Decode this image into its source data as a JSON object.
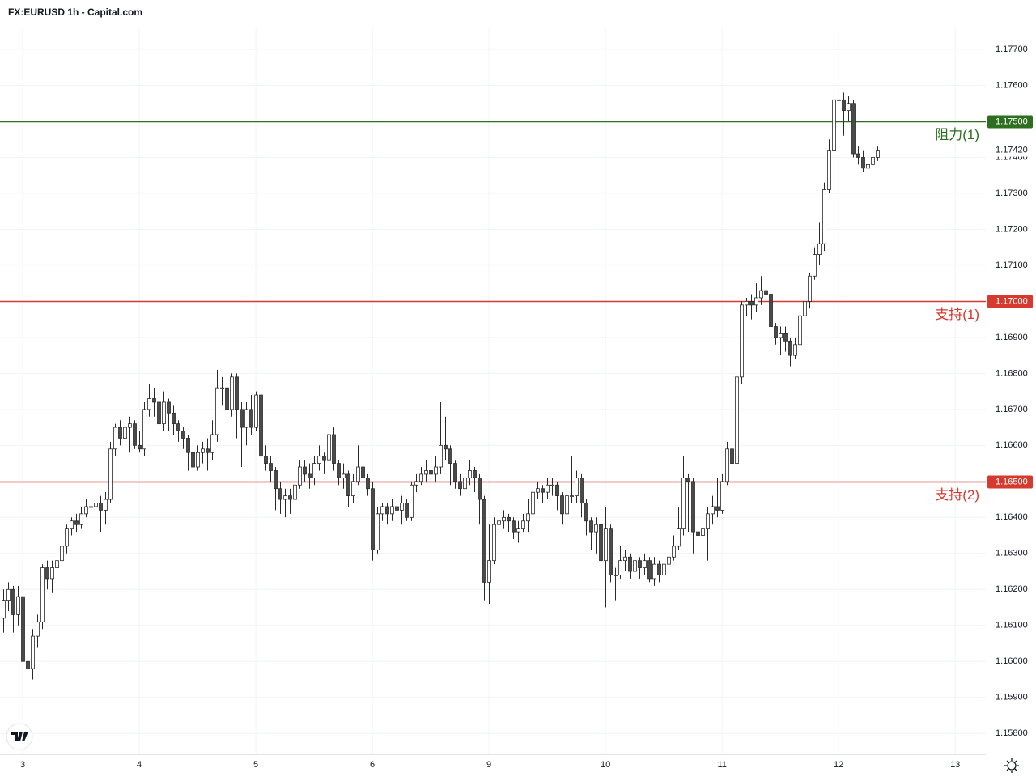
{
  "chart_data": {
    "type": "candlestick",
    "title": "FX:EURUSD 1h - Capital.com",
    "xlim": [
      -0.67,
      202.3
    ],
    "xticks": [
      {
        "value": 4,
        "label": "3"
      },
      {
        "value": 28,
        "label": "4"
      },
      {
        "value": 52,
        "label": "5"
      },
      {
        "value": 76,
        "label": "6"
      },
      {
        "value": 100,
        "label": "9"
      },
      {
        "value": 124,
        "label": "10"
      },
      {
        "value": 148,
        "label": "11"
      },
      {
        "value": 172,
        "label": "12"
      },
      {
        "value": 196,
        "label": "13"
      }
    ],
    "ylim": [
      1.15742,
      1.17763
    ],
    "yticks": [
      {
        "value": 1.158,
        "label": "1.15800"
      },
      {
        "value": 1.159,
        "label": "1.15900"
      },
      {
        "value": 1.16,
        "label": "1.16000"
      },
      {
        "value": 1.161,
        "label": "1.16100"
      },
      {
        "value": 1.162,
        "label": "1.16200"
      },
      {
        "value": 1.163,
        "label": "1.16300"
      },
      {
        "value": 1.164,
        "label": "1.16400"
      },
      {
        "value": 1.165,
        "label": "1.16500"
      },
      {
        "value": 1.166,
        "label": "1.16600"
      },
      {
        "value": 1.167,
        "label": "1.16700"
      },
      {
        "value": 1.168,
        "label": "1.16800"
      },
      {
        "value": 1.169,
        "label": "1.16900"
      },
      {
        "value": 1.17,
        "label": "1.17000"
      },
      {
        "value": 1.171,
        "label": "1.17100"
      },
      {
        "value": 1.172,
        "label": "1.17200"
      },
      {
        "value": 1.173,
        "label": "1.17300"
      },
      {
        "value": 1.174,
        "label": "1.17400"
      },
      {
        "value": 1.175,
        "label": "1.17500"
      },
      {
        "value": 1.176,
        "label": "1.17600"
      },
      {
        "value": 1.177,
        "label": "1.17700"
      }
    ],
    "grid": true,
    "up_color": "#ffffff",
    "down_color": "#4a4a4a",
    "edge_color": "#2a2a2a",
    "open": [
      1.1612,
      1.1617,
      1.162,
      1.1613,
      1.1618,
      1.16,
      1.1598,
      1.1607,
      1.1611,
      1.1626,
      1.1623,
      1.1626,
      1.1628,
      1.1632,
      1.1637,
      1.1639,
      1.1638,
      1.1641,
      1.1643,
      1.1643,
      1.1644,
      1.1642,
      1.1645,
      1.1659,
      1.1665,
      1.1662,
      1.1665,
      1.1666,
      1.166,
      1.1659,
      1.167,
      1.1673,
      1.1672,
      1.1666,
      1.1672,
      1.1669,
      1.1666,
      1.1664,
      1.1662,
      1.1658,
      1.1654,
      1.1658,
      1.1659,
      1.1658,
      1.1663,
      1.1676,
      1.1676,
      1.167,
      1.1679,
      1.167,
      1.1665,
      1.167,
      1.1665,
      1.1674,
      1.1657,
      1.1655,
      1.1653,
      1.1648,
      1.1645,
      1.1646,
      1.1645,
      1.1649,
      1.1654,
      1.1652,
      1.1651,
      1.1655,
      1.1657,
      1.1656,
      1.1663,
      1.1655,
      1.1651,
      1.1652,
      1.1646,
      1.165,
      1.1654,
      1.1651,
      1.1648,
      1.1631,
      1.1641,
      1.1643,
      1.1641,
      1.1643,
      1.1642,
      1.1644,
      1.164,
      1.1649,
      1.165,
      1.1652,
      1.1653,
      1.1652,
      1.1654,
      1.166,
      1.1659,
      1.1655,
      1.165,
      1.1648,
      1.1651,
      1.1653,
      1.1651,
      1.1645,
      1.1622,
      1.1628,
      1.1638,
      1.1639,
      1.164,
      1.1639,
      1.1636,
      1.1637,
      1.1639,
      1.1641,
      1.1647,
      1.1648,
      1.1647,
      1.1649,
      1.1649,
      1.1646,
      1.1641,
      1.1646,
      1.1646,
      1.1651,
      1.1644,
      1.1639,
      1.1636,
      1.1638,
      1.1628,
      1.1637,
      1.1624,
      1.1624,
      1.1628,
      1.1629,
      1.1625,
      1.1628,
      1.1626,
      1.1628,
      1.1623,
      1.1627,
      1.1624,
      1.1627,
      1.1629,
      1.1632,
      1.1637,
      1.1651,
      1.165,
      1.1636,
      1.1635,
      1.1637,
      1.1641,
      1.1643,
      1.1642,
      1.165,
      1.1659,
      1.1655,
      1.1679,
      1.1699,
      1.17,
      1.1699,
      1.1701,
      1.1703,
      1.1702,
      1.1693,
      1.169,
      1.1691,
      1.1689,
      1.1685,
      1.1688,
      1.1696,
      1.17,
      1.1707,
      1.1713,
      1.1716,
      1.1731,
      1.1742,
      1.1756,
      1.1756,
      1.1753,
      1.1755,
      1.1741,
      1.174,
      1.1737,
      1.1738,
      1.174
    ],
    "high": [
      1.162,
      1.1622,
      1.1621,
      1.1621,
      1.162,
      1.1607,
      1.1609,
      1.1613,
      1.1627,
      1.1628,
      1.1628,
      1.1631,
      1.1634,
      1.1638,
      1.164,
      1.1641,
      1.1643,
      1.1645,
      1.1646,
      1.165,
      1.1646,
      1.1647,
      1.1661,
      1.1666,
      1.1667,
      1.1674,
      1.1668,
      1.1667,
      1.1664,
      1.1672,
      1.1677,
      1.1676,
      1.1674,
      1.1675,
      1.1673,
      1.1671,
      1.1667,
      1.1665,
      1.1663,
      1.166,
      1.166,
      1.1661,
      1.1662,
      1.1667,
      1.1681,
      1.1679,
      1.1677,
      1.168,
      1.168,
      1.1672,
      1.1672,
      1.1674,
      1.1675,
      1.1675,
      1.166,
      1.1657,
      1.1654,
      1.165,
      1.1648,
      1.1648,
      1.1651,
      1.1656,
      1.1656,
      1.1655,
      1.1657,
      1.166,
      1.1658,
      1.1672,
      1.1665,
      1.1656,
      1.1655,
      1.1653,
      1.1652,
      1.166,
      1.1655,
      1.1652,
      1.165,
      1.1643,
      1.1644,
      1.1644,
      1.1645,
      1.1644,
      1.1646,
      1.1645,
      1.165,
      1.1652,
      1.1654,
      1.1656,
      1.1655,
      1.1657,
      1.1672,
      1.1668,
      1.166,
      1.1656,
      1.1652,
      1.1653,
      1.1656,
      1.1654,
      1.1652,
      1.1646,
      1.1638,
      1.164,
      1.1642,
      1.1642,
      1.1641,
      1.164,
      1.1639,
      1.1641,
      1.1645,
      1.1649,
      1.165,
      1.1649,
      1.1651,
      1.1651,
      1.165,
      1.1647,
      1.165,
      1.1657,
      1.1653,
      1.1652,
      1.1645,
      1.164,
      1.164,
      1.1639,
      1.1643,
      1.1638,
      1.1626,
      1.1632,
      1.1631,
      1.163,
      1.163,
      1.1629,
      1.163,
      1.1629,
      1.1629,
      1.1628,
      1.1629,
      1.1631,
      1.1635,
      1.1643,
      1.1657,
      1.1652,
      1.1651,
      1.1638,
      1.164,
      1.1643,
      1.1646,
      1.1651,
      1.1652,
      1.1661,
      1.1661,
      1.1681,
      1.17,
      1.1701,
      1.1702,
      1.1705,
      1.1707,
      1.1705,
      1.1707,
      1.1694,
      1.1693,
      1.1693,
      1.169,
      1.169,
      1.17,
      1.1705,
      1.1708,
      1.1715,
      1.1722,
      1.1733,
      1.1745,
      1.1758,
      1.1763,
      1.1758,
      1.1757,
      1.1756,
      1.1743,
      1.1742,
      1.1739,
      1.1742,
      1.1743
    ],
    "low": [
      1.1608,
      1.1614,
      1.1608,
      1.161,
      1.1592,
      1.1592,
      1.1595,
      1.1604,
      1.1609,
      1.162,
      1.1619,
      1.1624,
      1.1626,
      1.163,
      1.1635,
      1.1636,
      1.1637,
      1.164,
      1.1641,
      1.164,
      1.1636,
      1.1638,
      1.1644,
      1.1657,
      1.166,
      1.166,
      1.1658,
      1.1659,
      1.1658,
      1.1657,
      1.1668,
      1.1668,
      1.1665,
      1.1664,
      1.1664,
      1.1663,
      1.1661,
      1.1659,
      1.1653,
      1.1652,
      1.1653,
      1.1655,
      1.1653,
      1.1656,
      1.1661,
      1.1671,
      1.1667,
      1.1668,
      1.1662,
      1.1654,
      1.166,
      1.1663,
      1.1664,
      1.1655,
      1.1653,
      1.165,
      1.1642,
      1.1641,
      1.164,
      1.1641,
      1.1643,
      1.1648,
      1.165,
      1.1648,
      1.1649,
      1.1653,
      1.1652,
      1.1654,
      1.1653,
      1.1649,
      1.1648,
      1.1643,
      1.1644,
      1.1649,
      1.1647,
      1.1646,
      1.1628,
      1.163,
      1.1639,
      1.1638,
      1.1639,
      1.164,
      1.1638,
      1.1639,
      1.1639,
      1.1647,
      1.1649,
      1.165,
      1.165,
      1.165,
      1.1652,
      1.1656,
      1.1649,
      1.1648,
      1.1646,
      1.1647,
      1.1649,
      1.1647,
      1.1638,
      1.1617,
      1.1616,
      1.1627,
      1.1636,
      1.1637,
      1.1636,
      1.1634,
      1.1633,
      1.1636,
      1.1636,
      1.164,
      1.1645,
      1.1644,
      1.1645,
      1.1646,
      1.1642,
      1.1638,
      1.164,
      1.1644,
      1.1644,
      1.164,
      1.1635,
      1.1631,
      1.163,
      1.1626,
      1.1615,
      1.1622,
      1.1617,
      1.1623,
      1.1625,
      1.1623,
      1.1624,
      1.1623,
      1.1624,
      1.1622,
      1.1621,
      1.1622,
      1.1623,
      1.1626,
      1.1628,
      1.1631,
      1.1635,
      1.1636,
      1.163,
      1.1632,
      1.1634,
      1.1628,
      1.1638,
      1.164,
      1.1641,
      1.1649,
      1.1648,
      1.1654,
      1.1677,
      1.1696,
      1.1695,
      1.1697,
      1.1699,
      1.1697,
      1.1691,
      1.1688,
      1.1685,
      1.1686,
      1.1682,
      1.1684,
      1.1686,
      1.1693,
      1.1698,
      1.1706,
      1.171,
      1.1714,
      1.173,
      1.174,
      1.175,
      1.1746,
      1.175,
      1.174,
      1.1738,
      1.1736,
      1.1736,
      1.1737,
      1.1739
    ],
    "close": [
      1.1617,
      1.162,
      1.1613,
      1.1618,
      1.16,
      1.1598,
      1.1607,
      1.1611,
      1.1626,
      1.1623,
      1.1626,
      1.1628,
      1.1632,
      1.1637,
      1.1639,
      1.1638,
      1.1641,
      1.1643,
      1.1643,
      1.1644,
      1.1642,
      1.1645,
      1.1659,
      1.1665,
      1.1662,
      1.1665,
      1.1666,
      1.166,
      1.1659,
      1.167,
      1.1673,
      1.1672,
      1.1666,
      1.1672,
      1.1669,
      1.1666,
      1.1664,
      1.1662,
      1.1658,
      1.1654,
      1.1658,
      1.1659,
      1.1658,
      1.1663,
      1.1676,
      1.1676,
      1.167,
      1.1679,
      1.167,
      1.1665,
      1.167,
      1.1665,
      1.1674,
      1.1657,
      1.1655,
      1.1653,
      1.1648,
      1.1645,
      1.1646,
      1.1645,
      1.1649,
      1.1654,
      1.1652,
      1.1651,
      1.1655,
      1.1657,
      1.1656,
      1.1663,
      1.1655,
      1.1651,
      1.1652,
      1.1646,
      1.165,
      1.1654,
      1.1651,
      1.1648,
      1.1631,
      1.1641,
      1.1643,
      1.1641,
      1.1643,
      1.1642,
      1.1644,
      1.164,
      1.1649,
      1.165,
      1.1652,
      1.1653,
      1.1652,
      1.1654,
      1.166,
      1.1659,
      1.1655,
      1.165,
      1.1648,
      1.1651,
      1.1653,
      1.1651,
      1.1645,
      1.1622,
      1.1628,
      1.1638,
      1.1639,
      1.164,
      1.1639,
      1.1636,
      1.1637,
      1.1639,
      1.1641,
      1.1647,
      1.1648,
      1.1647,
      1.1649,
      1.1649,
      1.1646,
      1.1641,
      1.1646,
      1.1646,
      1.1651,
      1.1644,
      1.1639,
      1.1636,
      1.1638,
      1.1628,
      1.1637,
      1.1624,
      1.1624,
      1.1628,
      1.1629,
      1.1625,
      1.1628,
      1.1626,
      1.1628,
      1.1623,
      1.1627,
      1.1624,
      1.1627,
      1.1629,
      1.1632,
      1.1637,
      1.1651,
      1.165,
      1.1636,
      1.1635,
      1.1637,
      1.1641,
      1.1643,
      1.1642,
      1.165,
      1.1659,
      1.1655,
      1.1679,
      1.1699,
      1.17,
      1.1699,
      1.1701,
      1.1703,
      1.1702,
      1.1693,
      1.169,
      1.1691,
      1.1689,
      1.1685,
      1.1688,
      1.1696,
      1.17,
      1.1707,
      1.1713,
      1.1716,
      1.1731,
      1.1742,
      1.1756,
      1.1756,
      1.1753,
      1.1755,
      1.1741,
      1.174,
      1.1737,
      1.1738,
      1.174,
      1.1742
    ],
    "levels": [
      {
        "value": 1.175,
        "label": "阻力(1)",
        "price_label": "1.17500",
        "color": "#2e6e1f"
      },
      {
        "value": 1.17,
        "label": "支持(1)",
        "price_label": "1.17000",
        "color": "#d63a2f"
      },
      {
        "value": 1.165,
        "label": "支持(2)",
        "price_label": "1.16500",
        "color": "#d63a2f"
      }
    ],
    "last_price": {
      "value": 1.1742,
      "label": "1.17420"
    }
  }
}
